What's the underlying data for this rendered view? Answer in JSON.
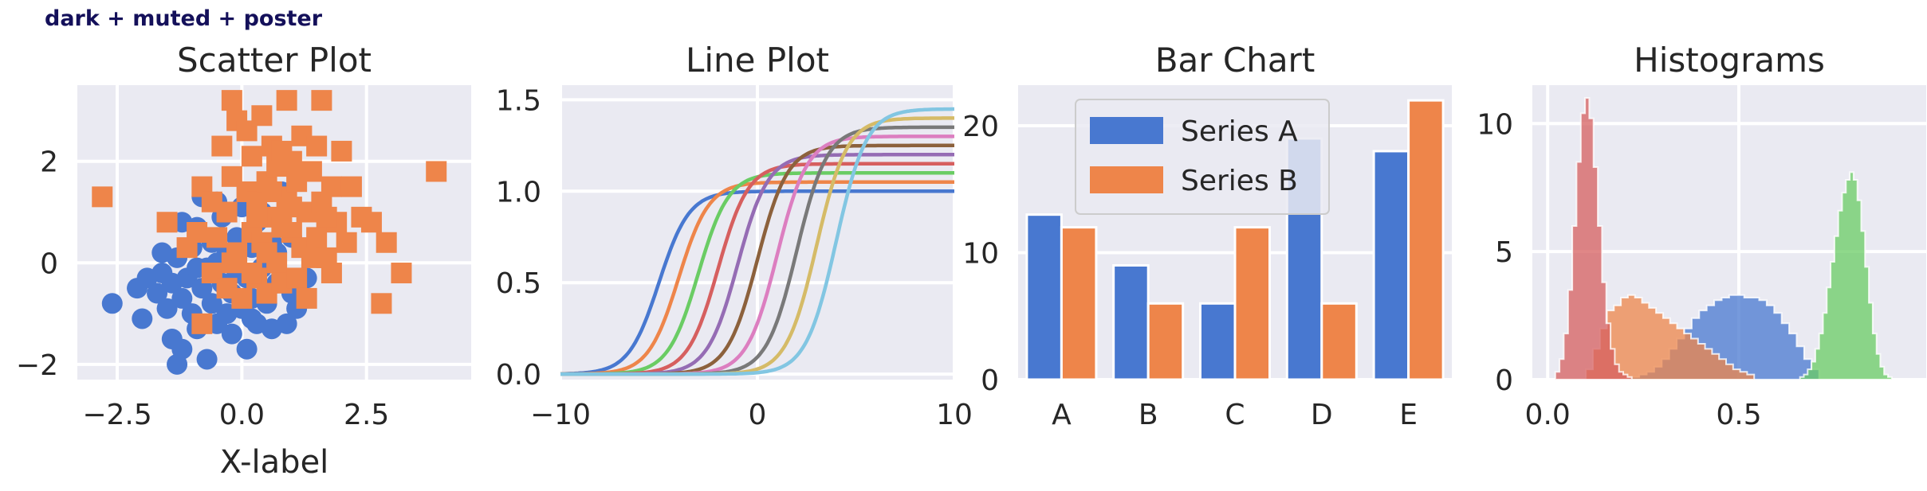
{
  "figure_title": "dark + muted + poster",
  "palette": [
    "#4878d0",
    "#ee854a",
    "#6acc64",
    "#d65f5f",
    "#956cb4",
    "#8c613c",
    "#dc7ec0",
    "#797979",
    "#d5bb67",
    "#82c6e2"
  ],
  "chart_data": [
    {
      "type": "scatter",
      "title": "Scatter Plot",
      "xlabel": "X-label",
      "ylabel": "",
      "xlim": [
        -3.3,
        4.6
      ],
      "ylim": [
        -2.3,
        3.5
      ],
      "xticks": [
        -2.5,
        0.0,
        2.5
      ],
      "xtick_labels": [
        "−2.5",
        "0.0",
        "2.5"
      ],
      "yticks": [
        -2,
        0,
        2
      ],
      "ytick_labels": [
        "−2",
        "0",
        "2"
      ],
      "grid": true,
      "series": [
        {
          "marker": "circle",
          "color": "#4878d0",
          "points": [
            [
              -2.6,
              -0.8
            ],
            [
              -2.1,
              -0.5
            ],
            [
              -2.0,
              -1.1
            ],
            [
              -1.9,
              -0.3
            ],
            [
              -1.7,
              -0.6
            ],
            [
              -1.6,
              -0.2
            ],
            [
              -1.5,
              -0.9
            ],
            [
              -1.4,
              -1.5
            ],
            [
              -1.4,
              -0.4
            ],
            [
              -1.3,
              0.1
            ],
            [
              -1.3,
              -2.0
            ],
            [
              -1.2,
              -0.7
            ],
            [
              -1.2,
              -1.7
            ],
            [
              -1.1,
              -0.3
            ],
            [
              -1.0,
              0.3
            ],
            [
              -1.0,
              -1.0
            ],
            [
              -0.9,
              -1.3
            ],
            [
              -0.9,
              0.7
            ],
            [
              -0.8,
              -0.5
            ],
            [
              -0.8,
              1.3
            ],
            [
              -0.7,
              -0.1
            ],
            [
              -0.7,
              -1.9
            ],
            [
              -0.6,
              0.4
            ],
            [
              -0.6,
              -0.8
            ],
            [
              -0.5,
              -1.2
            ],
            [
              -0.5,
              0.0
            ],
            [
              -0.4,
              -0.4
            ],
            [
              -0.4,
              0.9
            ],
            [
              -0.3,
              -1.0
            ],
            [
              -0.3,
              0.2
            ],
            [
              -0.2,
              -0.6
            ],
            [
              -0.2,
              -1.4
            ],
            [
              -0.1,
              0.5
            ],
            [
              -0.1,
              -0.2
            ],
            [
              0.0,
              -0.9
            ],
            [
              0.0,
              1.1
            ],
            [
              0.1,
              -0.3
            ],
            [
              0.1,
              -1.7
            ],
            [
              0.2,
              0.3
            ],
            [
              0.2,
              -0.7
            ],
            [
              0.3,
              -1.2
            ],
            [
              0.3,
              0.8
            ],
            [
              0.4,
              -0.1
            ],
            [
              0.5,
              -0.8
            ],
            [
              0.6,
              0.4
            ],
            [
              0.6,
              -1.3
            ],
            [
              0.7,
              -0.4
            ],
            [
              0.8,
              1.4
            ],
            [
              0.9,
              -1.2
            ],
            [
              1.0,
              -0.6
            ],
            [
              1.0,
              0.5
            ],
            [
              1.1,
              -0.9
            ],
            [
              1.3,
              -0.3
            ],
            [
              -1.6,
              0.2
            ],
            [
              -0.5,
              1.2
            ],
            [
              0.4,
              1.0
            ],
            [
              -1.2,
              0.8
            ],
            [
              0.2,
              -1.1
            ],
            [
              -0.9,
              -0.1
            ],
            [
              0.7,
              0.2
            ]
          ]
        },
        {
          "marker": "square",
          "color": "#ee854a",
          "points": [
            [
              -2.8,
              1.3
            ],
            [
              -1.5,
              0.8
            ],
            [
              -1.1,
              0.3
            ],
            [
              -0.9,
              0.6
            ],
            [
              -0.8,
              1.5
            ],
            [
              -0.8,
              -1.2
            ],
            [
              -0.6,
              1.2
            ],
            [
              -0.6,
              -0.2
            ],
            [
              -0.5,
              0.5
            ],
            [
              -0.4,
              2.3
            ],
            [
              -0.3,
              1.0
            ],
            [
              -0.3,
              -0.5
            ],
            [
              -0.2,
              3.2
            ],
            [
              -0.2,
              1.7
            ],
            [
              -0.1,
              2.8
            ],
            [
              -0.1,
              0.2
            ],
            [
              0.0,
              -0.7
            ],
            [
              0.1,
              1.4
            ],
            [
              0.1,
              2.6
            ],
            [
              0.2,
              0.6
            ],
            [
              0.2,
              2.1
            ],
            [
              0.3,
              -0.3
            ],
            [
              0.3,
              1.2
            ],
            [
              0.4,
              2.9
            ],
            [
              0.4,
              0.4
            ],
            [
              0.5,
              1.6
            ],
            [
              0.5,
              -0.6
            ],
            [
              0.6,
              2.3
            ],
            [
              0.6,
              0.9
            ],
            [
              0.7,
              0.0
            ],
            [
              0.7,
              1.9
            ],
            [
              0.8,
              2.2
            ],
            [
              0.8,
              -0.4
            ],
            [
              0.9,
              1.3
            ],
            [
              0.9,
              3.2
            ],
            [
              1.0,
              0.6
            ],
            [
              1.0,
              2.0
            ],
            [
              1.1,
              -0.3
            ],
            [
              1.1,
              1.6
            ],
            [
              1.2,
              0.3
            ],
            [
              1.2,
              2.5
            ],
            [
              1.3,
              1.0
            ],
            [
              1.3,
              -0.7
            ],
            [
              1.4,
              1.8
            ],
            [
              1.5,
              0.5
            ],
            [
              1.5,
              2.3
            ],
            [
              1.6,
              1.2
            ],
            [
              1.6,
              3.2
            ],
            [
              1.7,
              0.1
            ],
            [
              1.8,
              1.5
            ],
            [
              1.8,
              -0.2
            ],
            [
              1.9,
              0.8
            ],
            [
              2.0,
              2.2
            ],
            [
              2.1,
              0.4
            ],
            [
              2.2,
              1.5
            ],
            [
              2.4,
              0.9
            ],
            [
              2.6,
              0.8
            ],
            [
              2.9,
              0.4
            ],
            [
              3.2,
              -0.2
            ],
            [
              2.8,
              -0.8
            ],
            [
              3.9,
              1.8
            ],
            [
              0.3,
              0.9
            ],
            [
              1.4,
              0.1
            ],
            [
              0.6,
              1.4
            ],
            [
              -0.2,
              0.0
            ],
            [
              1.0,
              1.1
            ],
            [
              0.2,
              -0.2
            ],
            [
              1.7,
              0.9
            ],
            [
              0.8,
              0.7
            ],
            [
              0.5,
              0.2
            ]
          ]
        }
      ]
    },
    {
      "type": "line",
      "title": "Line Plot",
      "xlabel": "",
      "ylabel": "",
      "xlim": [
        -10,
        10
      ],
      "ylim": [
        -0.03,
        1.58
      ],
      "xticks": [
        -10,
        0,
        10
      ],
      "xtick_labels": [
        "−10",
        "0",
        "10"
      ],
      "yticks": [
        0.0,
        0.5,
        1.0,
        1.5
      ],
      "ytick_labels": [
        "0.0",
        "0.5",
        "1.0",
        "1.5"
      ],
      "grid": true,
      "series": [
        {
          "center": -5,
          "amplitude": 1.0,
          "color": "#4878d0"
        },
        {
          "center": -4,
          "amplitude": 1.05,
          "color": "#ee854a"
        },
        {
          "center": -3,
          "amplitude": 1.1,
          "color": "#6acc64"
        },
        {
          "center": -2,
          "amplitude": 1.15,
          "color": "#d65f5f"
        },
        {
          "center": -1,
          "amplitude": 1.2,
          "color": "#956cb4"
        },
        {
          "center": 0,
          "amplitude": 1.25,
          "color": "#8c613c"
        },
        {
          "center": 1,
          "amplitude": 1.3,
          "color": "#dc7ec0"
        },
        {
          "center": 2,
          "amplitude": 1.35,
          "color": "#797979"
        },
        {
          "center": 3,
          "amplitude": 1.4,
          "color": "#d5bb67"
        },
        {
          "center": 4,
          "amplitude": 1.45,
          "color": "#82c6e2"
        }
      ]
    },
    {
      "type": "bar",
      "title": "Bar Chart",
      "xlabel": "",
      "ylabel": "",
      "categories": [
        "A",
        "B",
        "C",
        "D",
        "E"
      ],
      "ylim": [
        0,
        23.2
      ],
      "yticks": [
        0,
        10,
        20
      ],
      "ytick_labels": [
        "0",
        "10",
        "20"
      ],
      "grid": true,
      "legend": "top-left",
      "series": [
        {
          "name": "Series A",
          "values": [
            13,
            9,
            6,
            19,
            18
          ],
          "color": "#4878d0"
        },
        {
          "name": "Series B",
          "values": [
            12,
            6,
            12,
            6,
            22
          ],
          "color": "#ee854a"
        }
      ]
    },
    {
      "type": "histogram",
      "title": "Histograms",
      "xlabel": "",
      "ylabel": "",
      "xlim": [
        -0.04,
        0.99
      ],
      "ylim": [
        0,
        11.5
      ],
      "xticks": [
        0.0,
        0.5
      ],
      "xtick_labels": [
        "0.0",
        "0.5"
      ],
      "yticks": [
        0,
        5,
        10
      ],
      "ytick_labels": [
        "0",
        "5",
        "10"
      ],
      "grid": true,
      "series": [
        {
          "color": "#4878d0",
          "x0": 0.22,
          "x1": 0.71,
          "heights": [
            0.1,
            0.2,
            0.3,
            0.5,
            0.8,
            1.2,
            1.6,
            2.0,
            2.4,
            2.7,
            2.9,
            3.1,
            3.2,
            3.3,
            3.3,
            3.2,
            3.2,
            3.1,
            2.9,
            2.6,
            2.2,
            1.8,
            1.3,
            0.8,
            0.4
          ]
        },
        {
          "color": "#ee854a",
          "x0": 0.1,
          "x1": 0.54,
          "heights": [
            0.4,
            1.2,
            2.0,
            2.7,
            2.9,
            3.2,
            3.3,
            3.2,
            3.0,
            2.8,
            2.6,
            2.4,
            2.2,
            2.0,
            1.8,
            1.6,
            1.4,
            1.2,
            1.0,
            0.8,
            0.6,
            0.4,
            0.3,
            0.2
          ]
        },
        {
          "color": "#6acc64",
          "x0": 0.66,
          "x1": 0.9,
          "heights": [
            0.1,
            0.2,
            0.4,
            0.7,
            1.2,
            1.8,
            2.6,
            3.6,
            4.6,
            5.6,
            6.6,
            7.3,
            7.8,
            8.1,
            7.8,
            7.0,
            5.8,
            4.4,
            3.0,
            1.8,
            1.0,
            0.5,
            0.2,
            0.1
          ]
        },
        {
          "color": "#d65f5f",
          "x0": 0.02,
          "x1": 0.22,
          "heights": [
            0.3,
            0.8,
            1.8,
            3.5,
            6.0,
            8.5,
            10.4,
            11.0,
            10.2,
            8.3,
            6.0,
            3.8,
            2.2,
            1.2,
            0.6,
            0.3,
            0.2,
            0.1
          ]
        }
      ]
    }
  ]
}
